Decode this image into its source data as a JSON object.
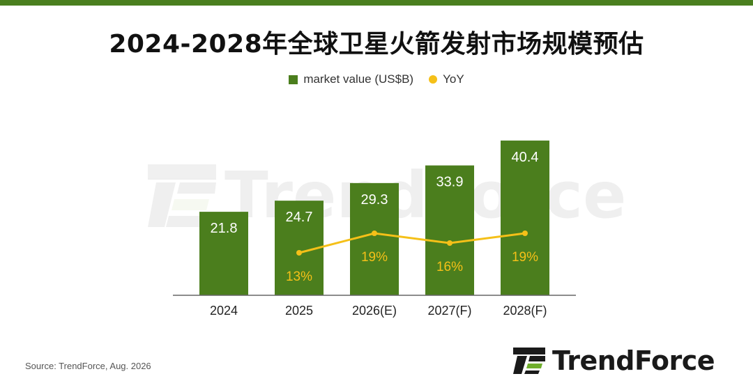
{
  "title": "2024-2028年全球卫星火箭发射市场规模预估",
  "legend": {
    "bar_label": "market value (US$B)",
    "line_label": "YoY"
  },
  "source": "Source: TrendForce, Aug. 2026",
  "brand": {
    "name": "TrendForce",
    "watermark": "TrendForce"
  },
  "colors": {
    "bar": "#4b7e1d",
    "line": "#f5c018",
    "top_bar": "#4a7f1f"
  },
  "chart_data": {
    "type": "bar",
    "categories": [
      "2024",
      "2025",
      "2026(E)",
      "2027(F)",
      "2028(F)"
    ],
    "series": [
      {
        "name": "market value (US$B)",
        "type": "bar",
        "values": [
          21.8,
          24.7,
          29.3,
          33.9,
          40.4
        ],
        "labels": [
          "21.8",
          "24.7",
          "29.3",
          "33.9",
          "40.4"
        ]
      },
      {
        "name": "YoY",
        "type": "line",
        "values": [
          null,
          13,
          19,
          16,
          19
        ],
        "labels": [
          null,
          "13%",
          "19%",
          "16%",
          "19%"
        ]
      }
    ],
    "title": "2024-2028年全球卫星火箭发射市场规模预估",
    "grid": false,
    "legend_position": "top-center"
  }
}
